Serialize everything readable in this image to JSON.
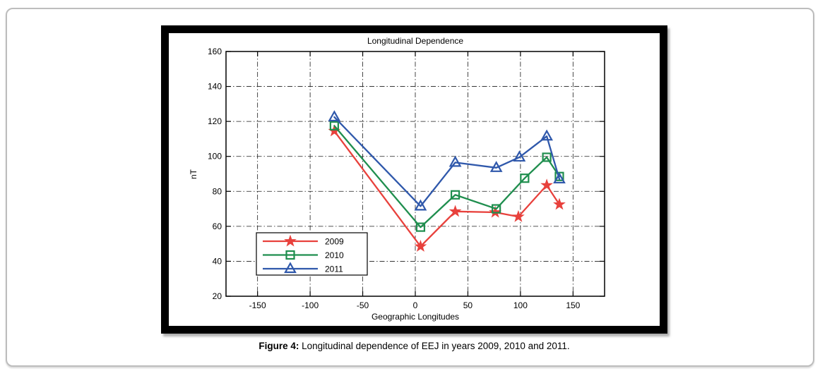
{
  "page": {
    "background": "#ffffff",
    "frame_border_color": "#bdbdbd",
    "figure_border_color": "#000000"
  },
  "figure_caption": {
    "prefix": "Figure 4:",
    "text": " Longitudinal dependence of EEJ in years 2009, 2010 and 2011."
  },
  "chart_data": {
    "type": "line",
    "title": "Longitudinal Dependence",
    "xlabel": "Geographic Longitudes",
    "ylabel": "nT",
    "xlim": [
      -180,
      180
    ],
    "ylim": [
      20,
      160
    ],
    "xticks": [
      -150,
      -100,
      -50,
      0,
      50,
      100,
      150
    ],
    "yticks": [
      20,
      40,
      60,
      80,
      100,
      120,
      140,
      160
    ],
    "grid": "dash-dot",
    "grid_color": "#1a1a1a",
    "axis_color": "#000000",
    "legend_position": "lower-left",
    "series": [
      {
        "name": "2009",
        "color": "#e8413c",
        "marker": "star",
        "x": [
          -77,
          5,
          38,
          76,
          98,
          125,
          137
        ],
        "y": [
          114.5,
          48.5,
          68.5,
          68,
          65.5,
          83.5,
          72.5
        ]
      },
      {
        "name": "2010",
        "color": "#1f8e4e",
        "marker": "square",
        "x": [
          -77,
          5,
          38,
          77,
          104,
          125,
          137
        ],
        "y": [
          117.5,
          59.5,
          78,
          70,
          87.5,
          99.5,
          88.5
        ]
      },
      {
        "name": "2011",
        "color": "#2f58ab",
        "marker": "triangle",
        "x": [
          -77,
          5,
          38,
          77,
          99,
          125,
          137
        ],
        "y": [
          122.5,
          71.5,
          96.5,
          93.5,
          99.5,
          111.5,
          87
        ]
      }
    ]
  }
}
